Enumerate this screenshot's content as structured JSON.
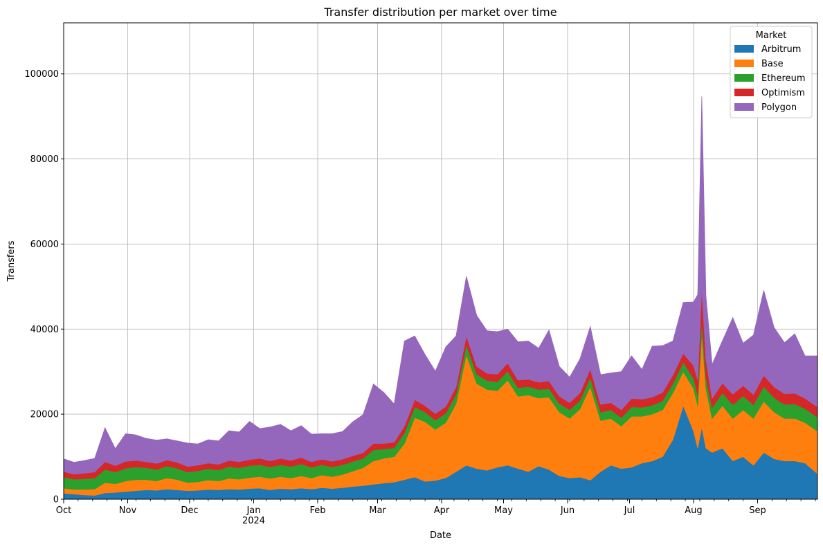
{
  "chart_data": {
    "type": "area",
    "stacked": true,
    "title": "Transfer distribution per market over time",
    "xlabel": "Date",
    "ylabel": "Transfers",
    "x_range": [
      "2023-10-01",
      "2024-09-30"
    ],
    "ylim": [
      0,
      112000
    ],
    "yticks": [
      0,
      20000,
      40000,
      60000,
      80000,
      100000
    ],
    "xticks": [
      {
        "date": "2023-10-01",
        "label": "Oct",
        "sub": ""
      },
      {
        "date": "2023-11-01",
        "label": "Nov",
        "sub": ""
      },
      {
        "date": "2023-12-01",
        "label": "Dec",
        "sub": ""
      },
      {
        "date": "2024-01-01",
        "label": "Jan",
        "sub": "2024"
      },
      {
        "date": "2024-02-01",
        "label": "Feb",
        "sub": ""
      },
      {
        "date": "2024-03-01",
        "label": "Mar",
        "sub": ""
      },
      {
        "date": "2024-04-01",
        "label": "Apr",
        "sub": ""
      },
      {
        "date": "2024-05-01",
        "label": "May",
        "sub": ""
      },
      {
        "date": "2024-06-01",
        "label": "Jun",
        "sub": ""
      },
      {
        "date": "2024-07-01",
        "label": "Jul",
        "sub": ""
      },
      {
        "date": "2024-08-01",
        "label": "Aug",
        "sub": ""
      },
      {
        "date": "2024-09-01",
        "label": "Sep",
        "sub": ""
      }
    ],
    "grid": true,
    "legend": {
      "title": "Market",
      "position": "top-right"
    },
    "x": [
      "2023-10-01",
      "2023-10-06",
      "2023-10-11",
      "2023-10-16",
      "2023-10-21",
      "2023-10-26",
      "2023-10-31",
      "2023-11-05",
      "2023-11-10",
      "2023-11-15",
      "2023-11-20",
      "2023-11-25",
      "2023-11-30",
      "2023-12-05",
      "2023-12-10",
      "2023-12-15",
      "2023-12-20",
      "2023-12-25",
      "2023-12-30",
      "2024-01-04",
      "2024-01-09",
      "2024-01-14",
      "2024-01-19",
      "2024-01-24",
      "2024-01-29",
      "2024-02-03",
      "2024-02-08",
      "2024-02-13",
      "2024-02-18",
      "2024-02-23",
      "2024-02-28",
      "2024-03-04",
      "2024-03-09",
      "2024-03-14",
      "2024-03-19",
      "2024-03-24",
      "2024-03-29",
      "2024-04-03",
      "2024-04-08",
      "2024-04-13",
      "2024-04-18",
      "2024-04-23",
      "2024-04-28",
      "2024-05-03",
      "2024-05-08",
      "2024-05-13",
      "2024-05-18",
      "2024-05-23",
      "2024-05-28",
      "2024-06-02",
      "2024-06-07",
      "2024-06-12",
      "2024-06-17",
      "2024-06-22",
      "2024-06-27",
      "2024-07-02",
      "2024-07-07",
      "2024-07-12",
      "2024-07-17",
      "2024-07-22",
      "2024-07-27",
      "2024-08-01",
      "2024-08-03",
      "2024-08-05",
      "2024-08-07",
      "2024-08-10",
      "2024-08-15",
      "2024-08-20",
      "2024-08-25",
      "2024-08-30",
      "2024-09-04",
      "2024-09-09",
      "2024-09-14",
      "2024-09-19",
      "2024-09-24",
      "2024-09-30"
    ],
    "series": [
      {
        "name": "Arbitrum",
        "color": "#1f77b4",
        "values": [
          1400,
          1200,
          1000,
          900,
          1500,
          1600,
          1800,
          2000,
          2200,
          2100,
          2400,
          2200,
          2000,
          2100,
          2300,
          2200,
          2400,
          2300,
          2500,
          2600,
          2200,
          2500,
          2400,
          2600,
          2400,
          2700,
          2500,
          2700,
          3000,
          3200,
          3500,
          3800,
          4000,
          4600,
          5200,
          4200,
          4400,
          5000,
          6500,
          8000,
          7200,
          6800,
          7500,
          8000,
          7200,
          6500,
          7800,
          7000,
          5500,
          5000,
          5200,
          4500,
          6500,
          8000,
          7200,
          7500,
          8500,
          9000,
          10000,
          14000,
          22000,
          16000,
          12000,
          17000,
          12000,
          11000,
          12000,
          9000,
          10000,
          8000,
          11000,
          9500,
          9000,
          9000,
          8500,
          6000
        ]
      },
      {
        "name": "Base",
        "color": "#ff7f0e",
        "values": [
          1200,
          1100,
          1300,
          1500,
          2400,
          2000,
          2500,
          2600,
          2400,
          2200,
          2600,
          2400,
          1900,
          2000,
          2200,
          2100,
          2500,
          2400,
          2600,
          2700,
          2700,
          2800,
          2600,
          2900,
          2600,
          3000,
          2800,
          3100,
          3600,
          4200,
          5500,
          5800,
          6000,
          8500,
          14000,
          14000,
          12000,
          13000,
          16000,
          26000,
          20000,
          19000,
          18000,
          20000,
          17000,
          18000,
          16000,
          17000,
          15000,
          14000,
          16000,
          22000,
          12000,
          11000,
          10000,
          12000,
          11000,
          11000,
          11000,
          11000,
          8000,
          10000,
          10000,
          22000,
          14000,
          8000,
          10000,
          10000,
          11000,
          11000,
          12000,
          11000,
          10000,
          10000,
          9500,
          10000
        ]
      },
      {
        "name": "Ethereum",
        "color": "#2ca02c",
        "values": [
          2600,
          2400,
          2500,
          2600,
          3100,
          2800,
          3000,
          3000,
          2800,
          2700,
          2800,
          2700,
          2500,
          2600,
          2700,
          2600,
          2800,
          2700,
          2800,
          2800,
          2700,
          2800,
          2700,
          2800,
          2500,
          2400,
          2300,
          2300,
          2300,
          2200,
          2600,
          2200,
          2100,
          2500,
          2500,
          2300,
          2200,
          2200,
          2200,
          2300,
          2200,
          2100,
          2100,
          2100,
          2000,
          2000,
          2000,
          2000,
          2000,
          2000,
          2000,
          2100,
          2000,
          2000,
          2000,
          2200,
          2100,
          2100,
          2100,
          2200,
          2200,
          2400,
          2600,
          3200,
          2600,
          2500,
          3000,
          3200,
          3300,
          3200,
          3500,
          3400,
          3300,
          3400,
          3300,
          3300
        ]
      },
      {
        "name": "Optimism",
        "color": "#d62728",
        "values": [
          1300,
          1200,
          1300,
          1400,
          1800,
          1500,
          1600,
          1500,
          1400,
          1400,
          1400,
          1400,
          1300,
          1300,
          1300,
          1300,
          1400,
          1400,
          1400,
          1500,
          1400,
          1500,
          1400,
          1500,
          1300,
          1300,
          1300,
          1300,
          1300,
          1300,
          1500,
          1300,
          1300,
          1600,
          1700,
          1500,
          1500,
          1600,
          1700,
          2100,
          1800,
          1700,
          1800,
          1900,
          1800,
          1700,
          1700,
          1800,
          1700,
          1700,
          1800,
          2000,
          1800,
          1700,
          1800,
          2000,
          1900,
          1900,
          2000,
          2000,
          2100,
          3000,
          3500,
          7500,
          4200,
          2200,
          2300,
          2500,
          2400,
          2400,
          2600,
          2500,
          2500,
          2500,
          2400,
          2400
        ]
      },
      {
        "name": "Polygon",
        "color": "#9467bd",
        "values": [
          3000,
          2800,
          3000,
          3200,
          8000,
          4000,
          6500,
          6000,
          5500,
          5500,
          5000,
          5000,
          5500,
          5000,
          5500,
          5500,
          7000,
          7000,
          9000,
          7000,
          8000,
          8000,
          7000,
          7500,
          6500,
          6000,
          6500,
          6500,
          8000,
          9000,
          14000,
          12000,
          9000,
          20000,
          15000,
          12000,
          10000,
          14000,
          12000,
          14000,
          12000,
          10000,
          10000,
          8000,
          9000,
          9000,
          8000,
          12000,
          7000,
          6000,
          8000,
          10000,
          7000,
          7000,
          9000,
          10000,
          7000,
          12000,
          11000,
          8000,
          12000,
          15000,
          20000,
          45000,
          15000,
          8000,
          10000,
          18000,
          10000,
          14000,
          20000,
          14000,
          12000,
          14000,
          10000,
          12000
        ]
      }
    ]
  }
}
